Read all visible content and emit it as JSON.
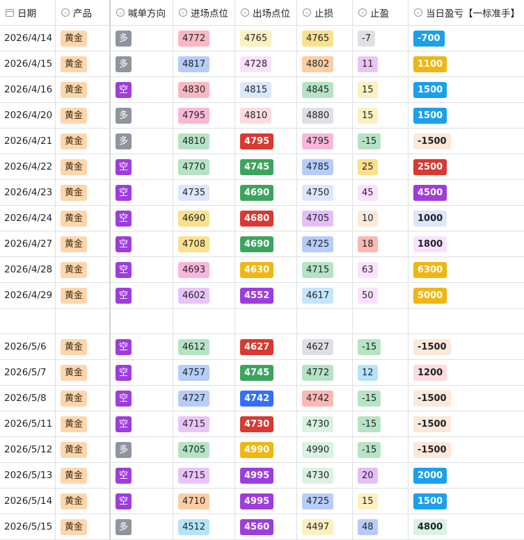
{
  "headers": [
    {
      "label": "日期",
      "icon": "calendar-icon"
    },
    {
      "label": "产品",
      "icon": "dropdown-option-icon"
    },
    {
      "label": "喊单方向",
      "icon": "dropdown-option-icon"
    },
    {
      "label": "进场点位",
      "icon": "dropdown-option-icon"
    },
    {
      "label": "出场点位",
      "icon": "dropdown-option-icon"
    },
    {
      "label": "止损",
      "icon": "dropdown-option-icon"
    },
    {
      "label": "止盈",
      "icon": "dropdown-option-icon"
    },
    {
      "label": "当日盈亏【一标准手】",
      "icon": "dropdown-option-icon"
    }
  ],
  "colors": {
    "product_tag": "#fdd6ad",
    "direction_long": "#8f959e",
    "direction_short": "#9e3ddb"
  },
  "rows": [
    {
      "date": "2026/4/14",
      "product": "黄金",
      "direction": "多",
      "entry": "4772",
      "entry_color": "#fbb8c2",
      "exit": "4765",
      "exit_color": "#fdf0c0",
      "sl": "4765",
      "sl_color": "#fce08c",
      "tp": "-7",
      "tp_color": "#dee0e3",
      "pnl": "-700",
      "pnl_color": "#1aa0ec",
      "pnl_text": "#ffffff"
    },
    {
      "date": "2026/4/15",
      "product": "黄金",
      "direction": "多",
      "entry": "4817",
      "entry_color": "#b6cdfa",
      "exit": "4728",
      "exit_color": "#fbe2fc",
      "sl": "4802",
      "sl_color": "#fdcda3",
      "tp": "11",
      "tp_color": "#e9c5f7",
      "pnl": "1100",
      "pnl_color": "#f0b611",
      "pnl_text": "#ffffff"
    },
    {
      "date": "2026/4/16",
      "product": "黄金",
      "direction": "空",
      "entry": "4830",
      "entry_color": "#fbb8c2",
      "exit": "4815",
      "exit_color": "#dce6fc",
      "sl": "4845",
      "sl_color": "#b6e3c4",
      "tp": "15",
      "tp_color": "#fdf0c0",
      "pnl": "1500",
      "pnl_color": "#1aa0ec",
      "pnl_text": "#ffffff"
    },
    {
      "date": "2026/4/20",
      "product": "黄金",
      "direction": "多",
      "entry": "4795",
      "entry_color": "#fbb8d6",
      "exit": "4810",
      "exit_color": "#fddbe0",
      "sl": "4880",
      "sl_color": "#dee0e3",
      "tp": "15",
      "tp_color": "#fdf0c0",
      "pnl": "1500",
      "pnl_color": "#1aa0ec",
      "pnl_text": "#ffffff"
    },
    {
      "date": "2026/4/21",
      "product": "黄金",
      "direction": "多",
      "entry": "4810",
      "entry_color": "#b6e3c4",
      "exit": "4795",
      "exit_color": "#d83931",
      "sl": "4795",
      "sl_color": "#f9b6dd",
      "tp": "-15",
      "tp_color": "#b6e3c4",
      "pnl": "-1500",
      "pnl_color": "#fde8d9",
      "pnl_text": "#1f2329"
    },
    {
      "date": "2026/4/22",
      "product": "黄金",
      "direction": "空",
      "entry": "4770",
      "entry_color": "#b6e3c4",
      "exit": "4745",
      "exit_color": "#3ba55d",
      "sl": "4785",
      "sl_color": "#b6cdfa",
      "tp": "25",
      "tp_color": "#fce08c",
      "pnl": "2500",
      "pnl_color": "#d83931",
      "pnl_text": "#ffffff"
    },
    {
      "date": "2026/4/23",
      "product": "黄金",
      "direction": "空",
      "entry": "4735",
      "entry_color": "#dce6fc",
      "exit": "4690",
      "exit_color": "#3ba55d",
      "sl": "4750",
      "sl_color": "#dce6fc",
      "tp": "45",
      "tp_color": "#fbe2fc",
      "pnl": "4500",
      "pnl_color": "#9e3ddb",
      "pnl_text": "#ffffff"
    },
    {
      "date": "2026/4/24",
      "product": "黄金",
      "direction": "空",
      "entry": "4690",
      "entry_color": "#fce08c",
      "exit": "4680",
      "exit_color": "#d83931",
      "sl": "4705",
      "sl_color": "#e4bff7",
      "tp": "10",
      "tp_color": "#fde8d9",
      "pnl": "1000",
      "pnl_color": "#dce6fc",
      "pnl_text": "#1f2329"
    },
    {
      "date": "2026/4/27",
      "product": "黄金",
      "direction": "空",
      "entry": "4708",
      "entry_color": "#fce08c",
      "exit": "4690",
      "exit_color": "#3ba55d",
      "sl": "4725",
      "sl_color": "#b6cdfa",
      "tp": "18",
      "tp_color": "#fbb8b0",
      "pnl": "1800",
      "pnl_color": "#fbe2fc",
      "pnl_text": "#1f2329"
    },
    {
      "date": "2026/4/28",
      "product": "黄金",
      "direction": "空",
      "entry": "4693",
      "entry_color": "#f9b6dd",
      "exit": "4630",
      "exit_color": "#f0b611",
      "sl": "4715",
      "sl_color": "#b6e3c4",
      "tp": "63",
      "tp_color": "#fbe2fc",
      "pnl": "6300",
      "pnl_color": "#f0b611",
      "pnl_text": "#ffffff"
    },
    {
      "date": "2026/4/29",
      "product": "黄金",
      "direction": "空",
      "entry": "4602",
      "entry_color": "#e9c5f7",
      "exit": "4552",
      "exit_color": "#9e3ddb",
      "sl": "4617",
      "sl_color": "#c4e5fb",
      "tp": "50",
      "tp_color": "#fbe2fc",
      "pnl": "5000",
      "pnl_color": "#f0b611",
      "pnl_text": "#ffffff"
    }
  ],
  "rows_b": [
    {
      "date": "2026/5/6",
      "product": "黄金",
      "direction": "空",
      "entry": "4612",
      "entry_color": "#b6e3c4",
      "exit": "4627",
      "exit_color": "#d83931",
      "sl": "4627",
      "sl_color": "#dee0e3",
      "tp": "-15",
      "tp_color": "#b6e3c4",
      "pnl": "-1500",
      "pnl_color": "#fde8d9",
      "pnl_text": "#1f2329"
    },
    {
      "date": "2026/5/7",
      "product": "黄金",
      "direction": "空",
      "entry": "4757",
      "entry_color": "#b6cdfa",
      "exit": "4745",
      "exit_color": "#3ba55d",
      "sl": "4772",
      "sl_color": "#b6e3c4",
      "tp": "12",
      "tp_color": "#b4e4fa",
      "pnl": "1200",
      "pnl_color": "#fddbe0",
      "pnl_text": "#1f2329"
    },
    {
      "date": "2026/5/8",
      "product": "黄金",
      "direction": "空",
      "entry": "4727",
      "entry_color": "#b6cdfa",
      "exit": "4742",
      "exit_color": "#3370ff",
      "sl": "4742",
      "sl_color": "#fbb8b0",
      "tp": "-15",
      "tp_color": "#b6e3c4",
      "pnl": "-1500",
      "pnl_color": "#fde8d9",
      "pnl_text": "#1f2329"
    },
    {
      "date": "2026/5/11",
      "product": "黄金",
      "direction": "空",
      "entry": "4715",
      "entry_color": "#e9c5f7",
      "exit": "4730",
      "exit_color": "#d83931",
      "sl": "4730",
      "sl_color": "#d9f2e2",
      "tp": "-15",
      "tp_color": "#b6e3c4",
      "pnl": "-1500",
      "pnl_color": "#fde8d9",
      "pnl_text": "#1f2329"
    },
    {
      "date": "2026/5/12",
      "product": "黄金",
      "direction": "多",
      "entry": "4705",
      "entry_color": "#b6e3c4",
      "exit": "4990",
      "exit_color": "#f0b611",
      "sl": "4990",
      "sl_color": "#d9f2e2",
      "tp": "-15",
      "tp_color": "#b6e3c4",
      "pnl": "-1500",
      "pnl_color": "#fde8d9",
      "pnl_text": "#1f2329"
    },
    {
      "date": "2026/5/13",
      "product": "黄金",
      "direction": "空",
      "entry": "4715",
      "entry_color": "#e9c5f7",
      "exit": "4995",
      "exit_color": "#9e3ddb",
      "sl": "4730",
      "sl_color": "#d9f2e2",
      "tp": "20",
      "tp_color": "#e4bff7",
      "pnl": "2000",
      "pnl_color": "#1aa0ec",
      "pnl_text": "#ffffff"
    },
    {
      "date": "2026/5/14",
      "product": "黄金",
      "direction": "空",
      "entry": "4710",
      "entry_color": "#fdcda3",
      "exit": "4995",
      "exit_color": "#9e3ddb",
      "sl": "4725",
      "sl_color": "#b6cdfa",
      "tp": "15",
      "tp_color": "#fdf0c0",
      "pnl": "1500",
      "pnl_color": "#1aa0ec",
      "pnl_text": "#ffffff"
    },
    {
      "date": "2026/5/15",
      "product": "黄金",
      "direction": "多",
      "entry": "4512",
      "entry_color": "#b4e4fa",
      "exit": "4560",
      "exit_color": "#9e3ddb",
      "sl": "4497",
      "sl_color": "#fdf0c0",
      "tp": "48",
      "tp_color": "#b6cdfa",
      "pnl": "4800",
      "pnl_color": "#d9f2e2",
      "pnl_text": "#1f2329"
    }
  ]
}
